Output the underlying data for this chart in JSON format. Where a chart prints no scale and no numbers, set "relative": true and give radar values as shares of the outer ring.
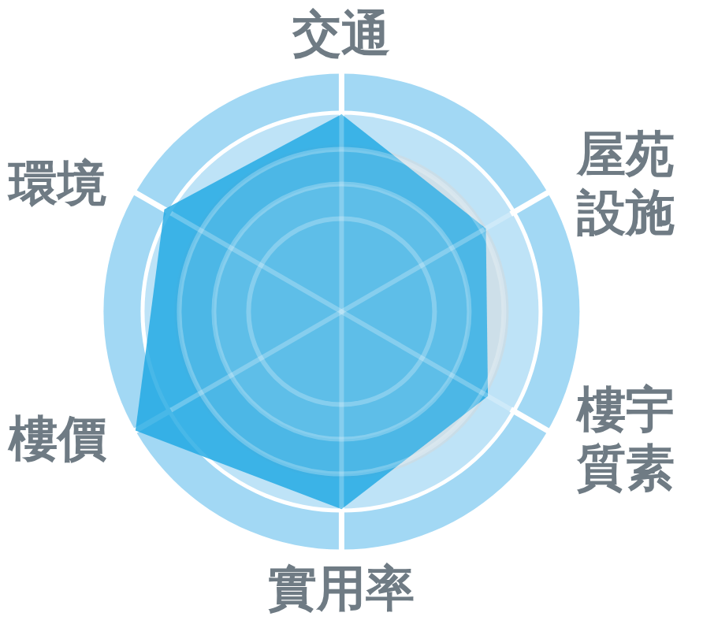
{
  "chart_data": {
    "type": "radar",
    "categories": [
      "交通",
      "屋苑設施",
      "樓宇質素",
      "實用率",
      "樓價",
      "環境"
    ],
    "relative": true,
    "grid": true,
    "series": [
      {
        "color": "#1aa6e2",
        "values": [
          0.83,
          0.7,
          0.71,
          0.83,
          1,
          0.86
        ]
      }
    ]
  }
}
